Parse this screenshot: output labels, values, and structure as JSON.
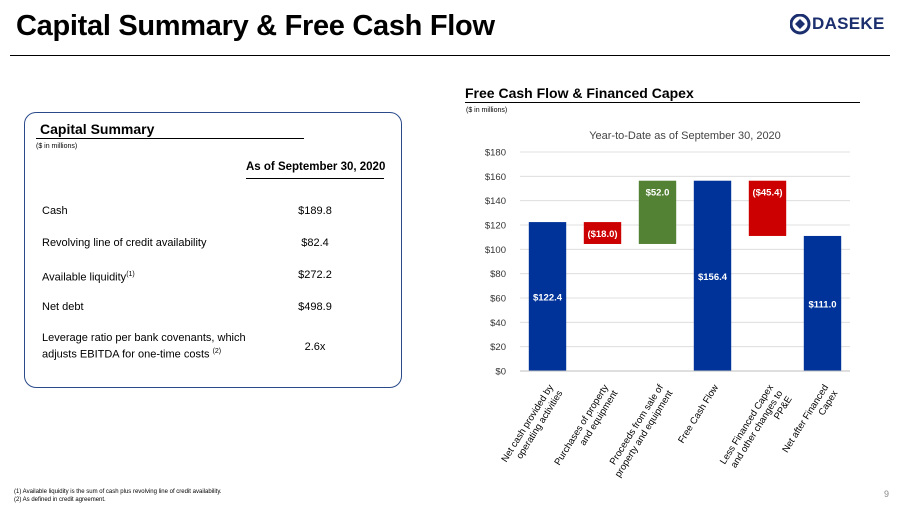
{
  "page": {
    "title": "Capital Summary & Free Cash Flow",
    "logo_text": "DASEKE",
    "page_number": "9"
  },
  "summary": {
    "heading": "Capital Summary",
    "units": "($ in millions)",
    "column_header": "As of September 30, 2020",
    "rows": [
      {
        "label": "Cash",
        "sup": "",
        "value": "$189.8"
      },
      {
        "label": "Revolving line of credit availability",
        "sup": "",
        "value": "$82.4"
      },
      {
        "label": "Available liquidity",
        "sup": "(1)",
        "value": "$272.2"
      },
      {
        "label": "Net debt",
        "sup": "",
        "value": "$498.9"
      },
      {
        "label_line1": "Leverage ratio per bank covenants, which",
        "label_line2": "adjusts EBITDA for one-time costs ",
        "sup": "(2)",
        "value": "2.6x"
      }
    ]
  },
  "chart_section": {
    "heading": "Free Cash Flow & Financed Capex",
    "units": "($ in millions)"
  },
  "footnotes": [
    "(1) Available liquidity is the sum of cash plus revolving line of credit availability.",
    "(2) As defined in credit agreement."
  ],
  "colors": {
    "total": "#003399",
    "negative": "#cc0000",
    "positive": "#548235",
    "logo": "#1b2f6e"
  },
  "chart_data": {
    "type": "bar",
    "subtype": "waterfall",
    "title": "Year-to-Date as of September 30, 2020",
    "ylim": [
      0,
      180
    ],
    "yticks": [
      "$0",
      "$20",
      "$40",
      "$60",
      "$80",
      "$100",
      "$120",
      "$140",
      "$160",
      "$180"
    ],
    "ytick_values": [
      0,
      20,
      40,
      60,
      80,
      100,
      120,
      140,
      160,
      180
    ],
    "grid": true,
    "categories": [
      [
        "Net cash provided by",
        "operating activities"
      ],
      [
        "Purchases of property",
        "and equipment"
      ],
      [
        "Proceeds from sale of",
        "property and equipment"
      ],
      [
        "Free Cash Flow"
      ],
      [
        "Less Financed Capex",
        "and other changes to",
        "PP&E"
      ],
      [
        "Net after Financed",
        "Capex"
      ]
    ],
    "bars": [
      {
        "start": 0,
        "end": 122.4,
        "kind": "total",
        "label": "$122.4"
      },
      {
        "start": 122.4,
        "end": 104.4,
        "kind": "negative",
        "label": "($18.0)"
      },
      {
        "start": 104.4,
        "end": 156.4,
        "kind": "positive",
        "label": "$52.0"
      },
      {
        "start": 0,
        "end": 156.4,
        "kind": "total",
        "label": "$156.4"
      },
      {
        "start": 156.4,
        "end": 111.0,
        "kind": "negative",
        "label": "($45.4)"
      },
      {
        "start": 0,
        "end": 111.0,
        "kind": "total",
        "label": "$111.0"
      }
    ]
  }
}
